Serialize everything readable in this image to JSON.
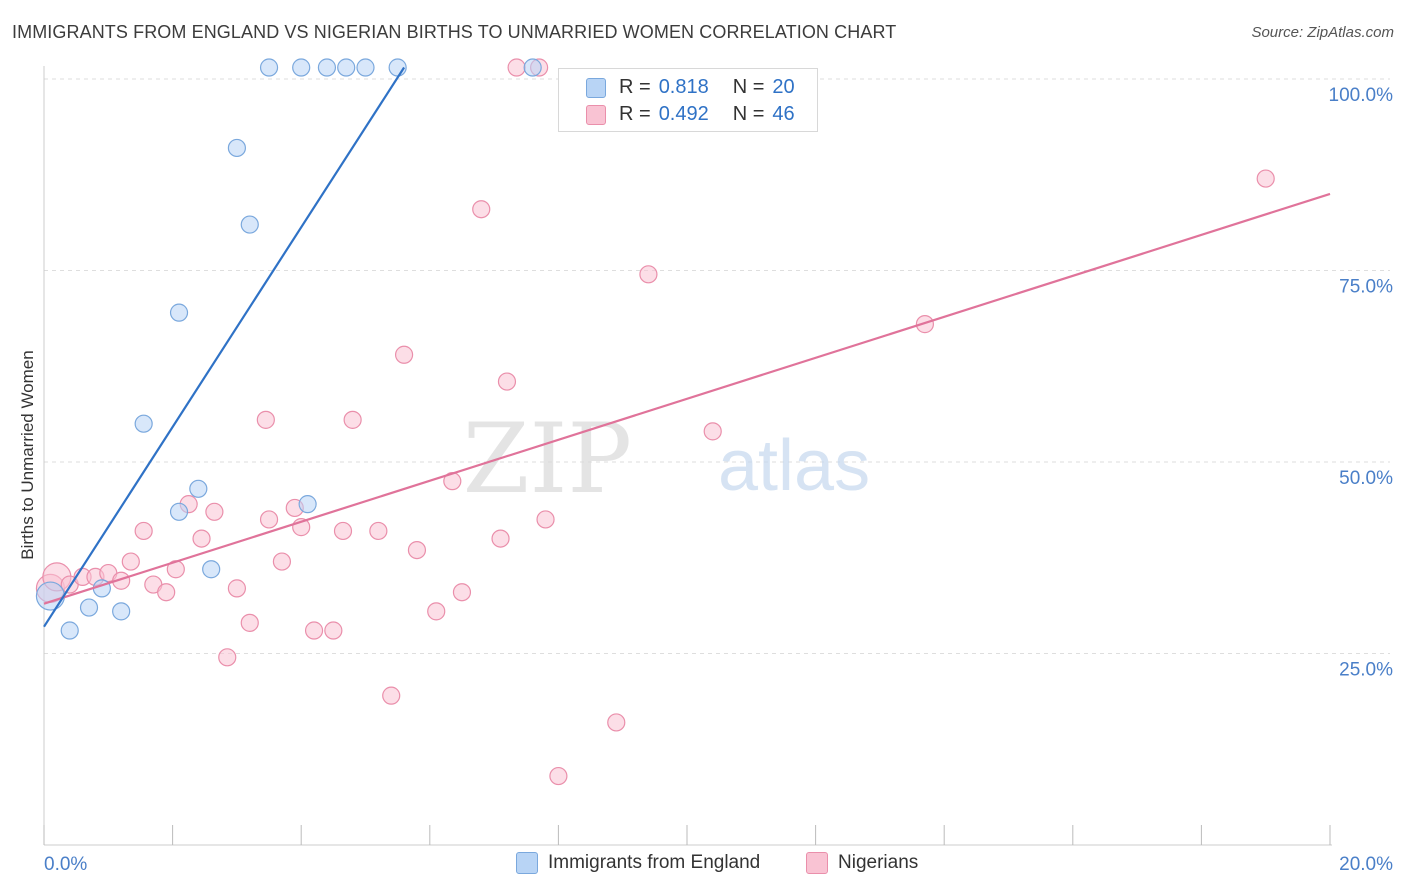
{
  "header": {
    "title": "IMMIGRANTS FROM ENGLAND VS NIGERIAN BIRTHS TO UNMARRIED WOMEN CORRELATION CHART",
    "source": "Source: ZipAtlas.com"
  },
  "watermark": {
    "zip": "ZIP",
    "atlas": "atlas"
  },
  "legend": {
    "r_label": "R =",
    "n_label": "N =",
    "series": [
      {
        "r": "0.818",
        "n": "20"
      },
      {
        "r": "0.492",
        "n": "46"
      }
    ]
  },
  "colors": {
    "blue_fill": "#b8d4f5",
    "blue_stroke": "#7aa8dd",
    "blue_line": "#2f72c6",
    "pink_fill": "#f9c3d3",
    "pink_stroke": "#ea8fab",
    "pink_line": "#e0739a",
    "axis_text": "#4a7fc8"
  },
  "chart_data": {
    "type": "scatter",
    "title": "IMMIGRANTS FROM ENGLAND VS NIGERIAN BIRTHS TO UNMARRIED WOMEN CORRELATION CHART",
    "xlabel": "",
    "ylabel": "Births to Unmarried Women",
    "xlim": [
      0,
      20
    ],
    "ylim": [
      0,
      100
    ],
    "x_tick_labels": [
      "0.0%",
      "20.0%"
    ],
    "y_ticks": [
      25,
      50,
      75,
      100
    ],
    "y_tick_labels": [
      "25.0%",
      "50.0%",
      "75.0%",
      "100.0%"
    ],
    "grid": "horizontal dashed",
    "legend_position": "top-center",
    "series": [
      {
        "name": "Immigrants from England",
        "r": 0.818,
        "n": 20,
        "points": [
          [
            0.1,
            32.5
          ],
          [
            0.4,
            28.0
          ],
          [
            0.7,
            31.0
          ],
          [
            0.9,
            33.5
          ],
          [
            1.2,
            30.5
          ],
          [
            1.55,
            55.0
          ],
          [
            2.1,
            43.5
          ],
          [
            2.1,
            69.5
          ],
          [
            2.4,
            46.5
          ],
          [
            2.6,
            36.0
          ],
          [
            3.0,
            91.0
          ],
          [
            3.2,
            81.0
          ],
          [
            3.5,
            101.5
          ],
          [
            4.0,
            101.5
          ],
          [
            4.4,
            101.5
          ],
          [
            4.7,
            101.5
          ],
          [
            5.0,
            101.5
          ],
          [
            5.5,
            101.5
          ],
          [
            7.6,
            101.5
          ],
          [
            4.1,
            44.5
          ]
        ],
        "trend": [
          [
            0.0,
            28.5
          ],
          [
            5.6,
            101.5
          ]
        ]
      },
      {
        "name": "Nigerians",
        "r": 0.492,
        "n": 46,
        "points": [
          [
            0.1,
            33.5
          ],
          [
            0.2,
            35.0
          ],
          [
            0.4,
            34.0
          ],
          [
            0.6,
            35.0
          ],
          [
            0.8,
            35.0
          ],
          [
            1.0,
            35.5
          ],
          [
            1.2,
            34.5
          ],
          [
            1.35,
            37.0
          ],
          [
            1.55,
            41.0
          ],
          [
            1.7,
            34.0
          ],
          [
            1.9,
            33.0
          ],
          [
            2.05,
            36.0
          ],
          [
            2.25,
            44.5
          ],
          [
            2.45,
            40.0
          ],
          [
            2.65,
            43.5
          ],
          [
            2.85,
            24.5
          ],
          [
            3.0,
            33.5
          ],
          [
            3.2,
            29.0
          ],
          [
            3.45,
            55.5
          ],
          [
            3.5,
            42.5
          ],
          [
            3.7,
            37.0
          ],
          [
            3.9,
            44.0
          ],
          [
            4.0,
            41.5
          ],
          [
            4.2,
            28.0
          ],
          [
            4.5,
            28.0
          ],
          [
            4.65,
            41.0
          ],
          [
            4.8,
            55.5
          ],
          [
            5.2,
            41.0
          ],
          [
            5.4,
            19.5
          ],
          [
            5.6,
            64.0
          ],
          [
            5.8,
            38.5
          ],
          [
            6.1,
            30.5
          ],
          [
            6.35,
            47.5
          ],
          [
            6.5,
            33.0
          ],
          [
            6.8,
            83.0
          ],
          [
            7.1,
            40.0
          ],
          [
            7.2,
            60.5
          ],
          [
            7.35,
            101.5
          ],
          [
            7.7,
            101.5
          ],
          [
            7.8,
            42.5
          ],
          [
            8.0,
            9.0
          ],
          [
            8.9,
            16.0
          ],
          [
            9.4,
            74.5
          ],
          [
            10.4,
            54.0
          ],
          [
            13.7,
            68.0
          ],
          [
            19.0,
            87.0
          ]
        ],
        "trend": [
          [
            0.0,
            31.5
          ],
          [
            20.0,
            85.0
          ]
        ]
      }
    ]
  }
}
